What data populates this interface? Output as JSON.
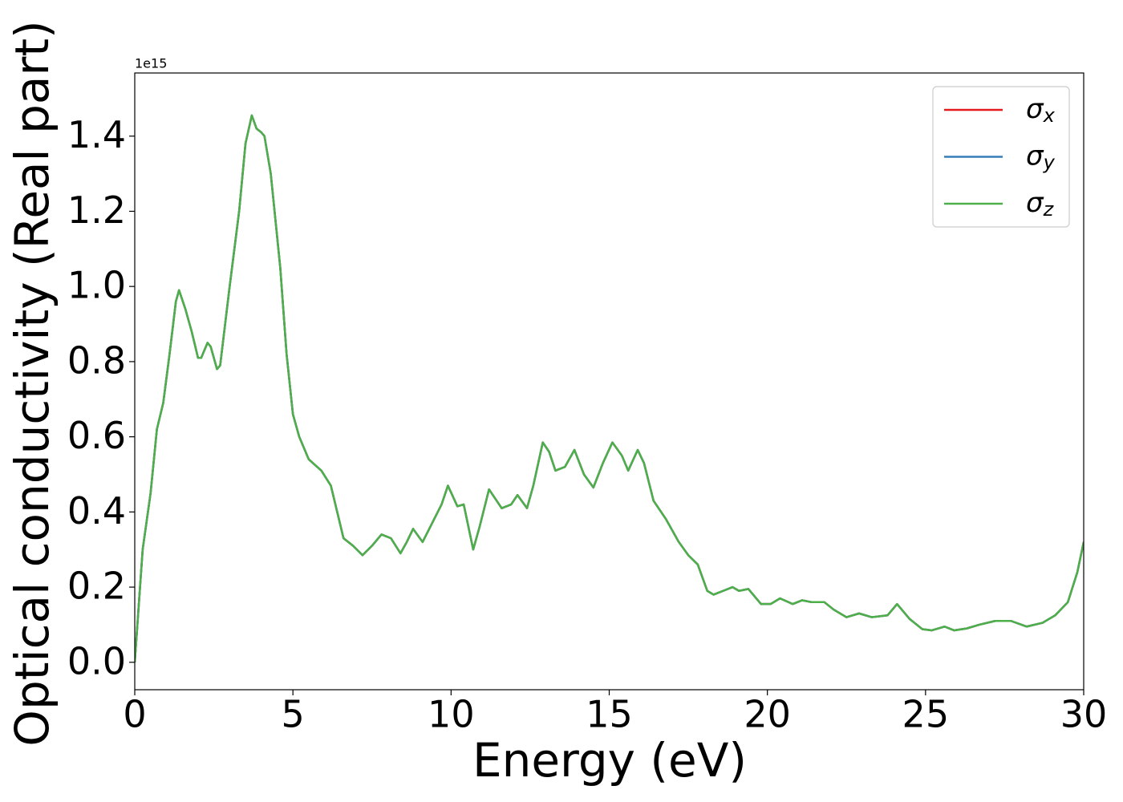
{
  "chart_data": {
    "type": "line",
    "xlabel": "Energy (eV)",
    "ylabel": "Optical conductivity (Real part)",
    "y_offset_label": "1e15",
    "xlim": [
      0,
      30
    ],
    "ylim": [
      -0.073,
      1.568
    ],
    "xticks": [
      0,
      5,
      10,
      15,
      20,
      25,
      30
    ],
    "yticks": [
      {
        "value": 0,
        "label": "0.0"
      },
      {
        "value": 0.2,
        "label": "0.2"
      },
      {
        "value": 0.4,
        "label": "0.4"
      },
      {
        "value": 0.6,
        "label": "0.6"
      },
      {
        "value": 0.8,
        "label": "0.8"
      },
      {
        "value": 1.0,
        "label": "1.0"
      },
      {
        "value": 1.2,
        "label": "1.2"
      },
      {
        "value": 1.4,
        "label": "1.4"
      }
    ],
    "grid": false,
    "legend_loc": "upper right",
    "x": [
      0,
      0.1,
      0.25,
      0.5,
      0.7,
      0.9,
      1.1,
      1.3,
      1.4,
      1.6,
      1.8,
      2.0,
      2.1,
      2.3,
      2.4,
      2.6,
      2.7,
      3.0,
      3.3,
      3.5,
      3.7,
      3.85,
      4.0,
      4.1,
      4.3,
      4.6,
      4.8,
      5.0,
      5.2,
      5.5,
      5.7,
      5.9,
      6.2,
      6.4,
      6.6,
      6.9,
      7.2,
      7.5,
      7.8,
      8.1,
      8.4,
      8.6,
      8.8,
      9.1,
      9.4,
      9.7,
      9.9,
      10.2,
      10.4,
      10.7,
      10.9,
      11.2,
      11.6,
      11.9,
      12.1,
      12.4,
      12.6,
      12.9,
      13.1,
      13.3,
      13.6,
      13.9,
      14.2,
      14.5,
      14.8,
      15.1,
      15.4,
      15.6,
      15.9,
      16.1,
      16.4,
      16.8,
      17.2,
      17.5,
      17.8,
      18.1,
      18.3,
      18.6,
      18.9,
      19.1,
      19.4,
      19.8,
      20.1,
      20.4,
      20.8,
      21.1,
      21.4,
      21.8,
      22.1,
      22.5,
      22.9,
      23.3,
      23.8,
      24.1,
      24.5,
      24.9,
      25.2,
      25.6,
      25.9,
      26.3,
      26.7,
      27.2,
      27.7,
      28.2,
      28.7,
      29.1,
      29.5,
      29.8,
      30.0
    ],
    "series": [
      {
        "name": "σx",
        "color": "#e41a1c",
        "values": [
          0.0,
          0.12,
          0.3,
          0.45,
          0.62,
          0.69,
          0.82,
          0.96,
          0.99,
          0.94,
          0.88,
          0.81,
          0.81,
          0.85,
          0.84,
          0.78,
          0.79,
          1.0,
          1.2,
          1.38,
          1.455,
          1.42,
          1.41,
          1.4,
          1.3,
          1.05,
          0.82,
          0.66,
          0.6,
          0.54,
          0.525,
          0.51,
          0.47,
          0.4,
          0.33,
          0.31,
          0.285,
          0.31,
          0.34,
          0.33,
          0.29,
          0.32,
          0.355,
          0.32,
          0.37,
          0.42,
          0.47,
          0.415,
          0.42,
          0.3,
          0.36,
          0.46,
          0.41,
          0.42,
          0.445,
          0.41,
          0.47,
          0.585,
          0.56,
          0.51,
          0.52,
          0.565,
          0.5,
          0.465,
          0.53,
          0.585,
          0.55,
          0.51,
          0.565,
          0.53,
          0.43,
          0.38,
          0.32,
          0.285,
          0.26,
          0.19,
          0.18,
          0.19,
          0.2,
          0.19,
          0.195,
          0.155,
          0.155,
          0.17,
          0.155,
          0.165,
          0.16,
          0.16,
          0.14,
          0.12,
          0.13,
          0.12,
          0.125,
          0.155,
          0.115,
          0.088,
          0.085,
          0.095,
          0.085,
          0.09,
          0.1,
          0.11,
          0.11,
          0.095,
          0.105,
          0.125,
          0.16,
          0.24,
          0.32
        ]
      },
      {
        "name": "σy",
        "color": "#377eb8",
        "values": [
          0.0,
          0.12,
          0.3,
          0.45,
          0.62,
          0.69,
          0.82,
          0.96,
          0.99,
          0.94,
          0.88,
          0.81,
          0.81,
          0.85,
          0.84,
          0.78,
          0.79,
          1.0,
          1.2,
          1.38,
          1.455,
          1.42,
          1.41,
          1.4,
          1.3,
          1.05,
          0.82,
          0.66,
          0.6,
          0.54,
          0.525,
          0.51,
          0.47,
          0.4,
          0.33,
          0.31,
          0.285,
          0.31,
          0.34,
          0.33,
          0.29,
          0.32,
          0.355,
          0.32,
          0.37,
          0.42,
          0.47,
          0.415,
          0.42,
          0.3,
          0.36,
          0.46,
          0.41,
          0.42,
          0.445,
          0.41,
          0.47,
          0.585,
          0.56,
          0.51,
          0.52,
          0.565,
          0.5,
          0.465,
          0.53,
          0.585,
          0.55,
          0.51,
          0.565,
          0.53,
          0.43,
          0.38,
          0.32,
          0.285,
          0.26,
          0.19,
          0.18,
          0.19,
          0.2,
          0.19,
          0.195,
          0.155,
          0.155,
          0.17,
          0.155,
          0.165,
          0.16,
          0.16,
          0.14,
          0.12,
          0.13,
          0.12,
          0.125,
          0.155,
          0.115,
          0.088,
          0.085,
          0.095,
          0.085,
          0.09,
          0.1,
          0.11,
          0.11,
          0.095,
          0.105,
          0.125,
          0.16,
          0.24,
          0.32
        ]
      },
      {
        "name": "σz",
        "color": "#4daf4a",
        "values": [
          0.0,
          0.12,
          0.3,
          0.45,
          0.62,
          0.69,
          0.82,
          0.96,
          0.99,
          0.94,
          0.88,
          0.81,
          0.81,
          0.85,
          0.84,
          0.78,
          0.79,
          1.0,
          1.2,
          1.38,
          1.455,
          1.42,
          1.41,
          1.4,
          1.3,
          1.05,
          0.82,
          0.66,
          0.6,
          0.54,
          0.525,
          0.51,
          0.47,
          0.4,
          0.33,
          0.31,
          0.285,
          0.31,
          0.34,
          0.33,
          0.29,
          0.32,
          0.355,
          0.32,
          0.37,
          0.42,
          0.47,
          0.415,
          0.42,
          0.3,
          0.36,
          0.46,
          0.41,
          0.42,
          0.445,
          0.41,
          0.47,
          0.585,
          0.56,
          0.51,
          0.52,
          0.565,
          0.5,
          0.465,
          0.53,
          0.585,
          0.55,
          0.51,
          0.565,
          0.53,
          0.43,
          0.38,
          0.32,
          0.285,
          0.26,
          0.19,
          0.18,
          0.19,
          0.2,
          0.19,
          0.195,
          0.155,
          0.155,
          0.17,
          0.155,
          0.165,
          0.16,
          0.16,
          0.14,
          0.12,
          0.13,
          0.12,
          0.125,
          0.155,
          0.115,
          0.088,
          0.085,
          0.095,
          0.085,
          0.09,
          0.1,
          0.11,
          0.11,
          0.095,
          0.105,
          0.125,
          0.16,
          0.24,
          0.32
        ]
      }
    ]
  }
}
